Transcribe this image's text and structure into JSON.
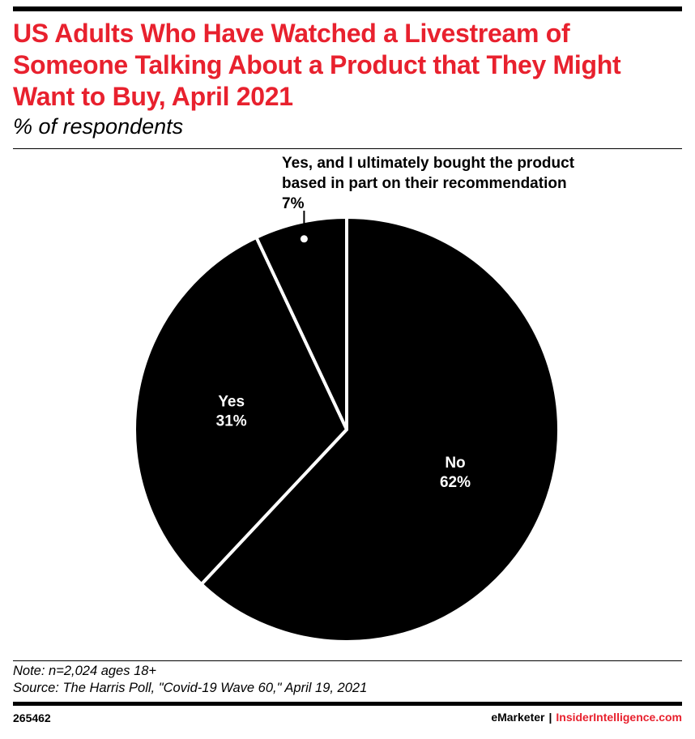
{
  "header": {
    "title": "US Adults Who Have Watched a Livestream of Someone Talking About a Product that They Might Want to Buy, April 2021",
    "subtitle": "% of respondents"
  },
  "chart_data": {
    "type": "pie",
    "title": "US Adults Who Have Watched a Livestream of Someone Talking About a Product that They Might Want to Buy, April 2021",
    "subtitle": "% of respondents",
    "unit": "%",
    "start": "12 o'clock",
    "direction": "clockwise",
    "slices": [
      {
        "label": "No",
        "value": 62,
        "value_label": "62%"
      },
      {
        "label": "Yes",
        "value": 31,
        "value_label": "31%"
      },
      {
        "label": "Yes, and I ultimately bought the product based in part on their recommendation",
        "label_lines": [
          "Yes, and I ultimately bought the product",
          "based in part on their recommendation"
        ],
        "value": 7,
        "value_label": "7%"
      }
    ],
    "colors": {
      "fill": "#000000",
      "separator": "#ffffff",
      "text_inside": "#ffffff",
      "text_outside": "#000000"
    }
  },
  "footer": {
    "note": "Note: n=2,024 ages 18+",
    "source": "Source: The Harris Poll, \"Covid-19 Wave 60,\" April 19, 2021",
    "chart_id": "265462",
    "brand_left": "eMarketer",
    "brand_sep": "|",
    "brand_right": "InsiderIntelligence.com"
  },
  "colors": {
    "title": "#e8212e",
    "brand_accent": "#e8212e"
  }
}
